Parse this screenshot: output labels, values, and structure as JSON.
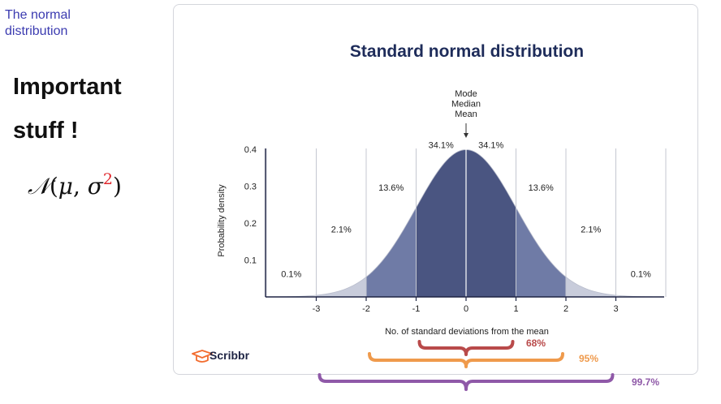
{
  "slide": {
    "label": "The normal\ndistribution",
    "headline_line1": "Important",
    "headline_line2": "stuff !",
    "formula": {
      "script_n": "𝒩",
      "open": "(",
      "mu": "μ",
      "comma": ", ",
      "sigma": "σ",
      "power": "2",
      "close": ")"
    }
  },
  "chart_data": {
    "type": "area",
    "title": "Standard normal distribution",
    "xlabel": "No. of standard deviations from the mean",
    "ylabel": "Probability density",
    "x_ticks": [
      -3,
      -2,
      -1,
      0,
      1,
      2,
      3
    ],
    "y_ticks": [
      0.1,
      0.2,
      0.3,
      0.4
    ],
    "xlim": [
      -4,
      4
    ],
    "ylim": [
      0,
      0.4
    ],
    "center_annotation": [
      "Mode",
      "Median",
      "Mean"
    ],
    "regions": [
      {
        "from": -4,
        "to": -3,
        "label": "0.1%",
        "color": "#ffffff"
      },
      {
        "from": -3,
        "to": -2,
        "label": "2.1%",
        "color": "#c8ccdb"
      },
      {
        "from": -2,
        "to": -1,
        "label": "13.6%",
        "color": "#6f7ba6"
      },
      {
        "from": -1,
        "to": 0,
        "label": "34.1%",
        "color": "#4a5581"
      },
      {
        "from": 0,
        "to": 1,
        "label": "34.1%",
        "color": "#4a5581"
      },
      {
        "from": 1,
        "to": 2,
        "label": "13.6%",
        "color": "#6f7ba6"
      },
      {
        "from": 2,
        "to": 3,
        "label": "2.1%",
        "color": "#c8ccdb"
      },
      {
        "from": 3,
        "to": 4,
        "label": "0.1%",
        "color": "#ffffff"
      }
    ],
    "coverage": [
      {
        "label": "68%",
        "from": -1,
        "to": 1,
        "color": "#b94a4a"
      },
      {
        "label": "95%",
        "from": -2,
        "to": 2,
        "color": "#ef9a4c"
      },
      {
        "label": "99.7%",
        "from": -3,
        "to": 3,
        "color": "#8f59a8"
      }
    ]
  },
  "branding": {
    "logo_text": "Scribbr",
    "color": "#f26c2e"
  },
  "colors": {
    "axis": "#1e2444",
    "title": "#1e2c5a",
    "text": "#222222"
  }
}
